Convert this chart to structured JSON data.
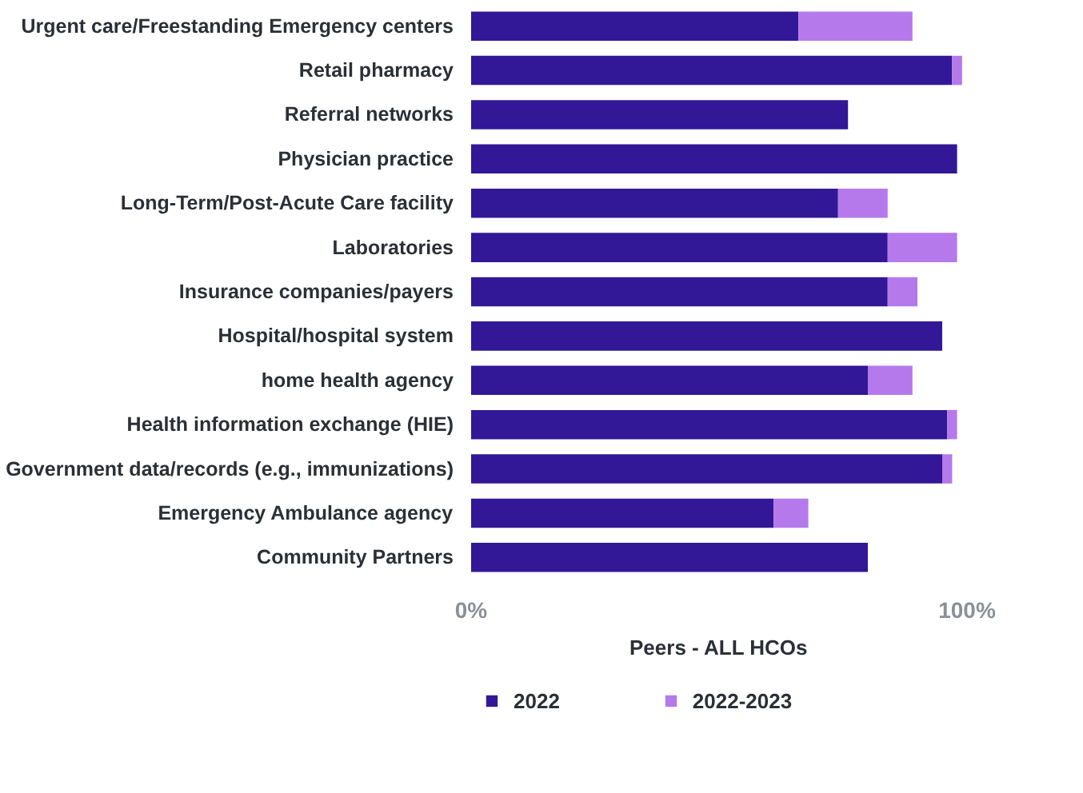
{
  "chart_data": {
    "type": "bar",
    "orientation": "horizontal",
    "stacked": true,
    "categories": [
      "Urgent care/Freestanding Emergency centers",
      "Retail pharmacy",
      "Referral networks",
      "Physician practice",
      "Long-Term/Post-Acute Care facility",
      "Laboratories",
      "Insurance companies/payers",
      "Hospital/hospital system",
      "home health agency",
      "Health information exchange (HIE)",
      "Government data/records (e.g., immunizations)",
      "Emergency Ambulance agency",
      "Community Partners"
    ],
    "series": [
      {
        "name": "2022",
        "color": "#321897",
        "values": [
          66,
          97,
          76,
          98,
          74,
          84,
          84,
          95,
          80,
          96,
          95,
          61,
          80
        ]
      },
      {
        "name": "2022-2023",
        "color": "#b579ec",
        "values": [
          23,
          2,
          null,
          null,
          10,
          14,
          6,
          null,
          9,
          2,
          2,
          7,
          null
        ]
      }
    ],
    "xlabel": "Peers - ALL HCOs",
    "xlim": [
      0,
      100
    ],
    "xticks": [
      {
        "value": 0,
        "label": "0%"
      },
      {
        "value": 100,
        "label": "100%"
      }
    ],
    "grid": false,
    "legend": "bottom left"
  }
}
